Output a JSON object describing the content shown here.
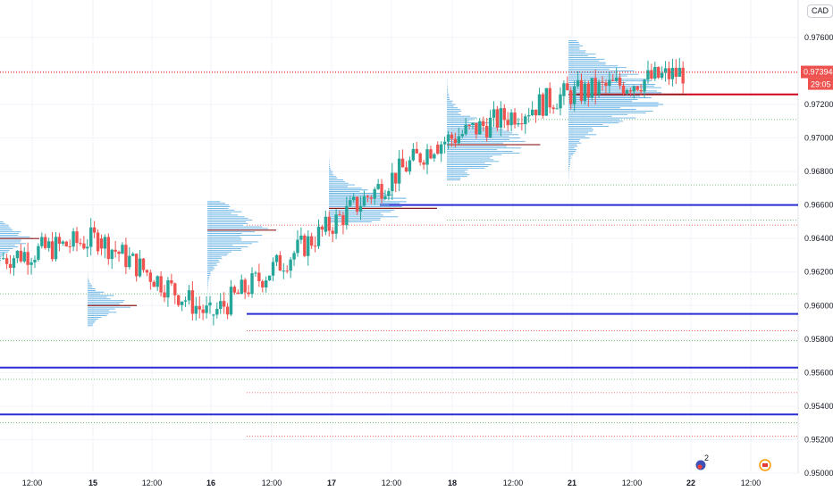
{
  "currency_badge": "CAD",
  "price_tag": {
    "value": "0.97394",
    "countdown": "29:05"
  },
  "colors": {
    "up": "#26a69a",
    "down": "#ef5350",
    "profile": "#4aa3df",
    "level_blue": "#2a2ed2",
    "level_red": "#d0021b",
    "dotted_red": "#ef5350",
    "dotted_green": "#4caf50"
  },
  "event_icons": [
    {
      "name": "au-event-icon",
      "count": "2"
    },
    {
      "name": "ca-event-icon"
    }
  ],
  "chart_data": {
    "type": "candlestick",
    "ylim": [
      0.95,
      0.9777
    ],
    "y_ticks": [
      "0.97600",
      "0.97400",
      "0.97200",
      "0.97000",
      "0.96800",
      "0.96600",
      "0.96400",
      "0.96200",
      "0.96000",
      "0.95800",
      "0.95600",
      "0.95400",
      "0.95200",
      "0.95000"
    ],
    "x_ticks": [
      "12:00",
      "15",
      "12:00",
      "16",
      "12:00",
      "17",
      "12:00",
      "18",
      "12:00",
      "21",
      "12:00",
      "22",
      "12:00"
    ],
    "day_separators": [
      "15",
      "16",
      "17",
      "18",
      "21",
      "22"
    ],
    "candle_series": [
      {
        "segment": "day-14-12h",
        "from_bar": 0,
        "to_bar": 28,
        "start": 0.9628,
        "end": 0.964
      },
      {
        "segment": "day-15",
        "from_bar": 28,
        "to_bar": 60,
        "start": 0.964,
        "end": 0.9594
      },
      {
        "segment": "day-16",
        "from_bar": 60,
        "to_bar": 92,
        "start": 0.9594,
        "end": 0.9644
      },
      {
        "segment": "day-17",
        "from_bar": 92,
        "to_bar": 124,
        "start": 0.9644,
        "end": 0.9696
      },
      {
        "segment": "day-18",
        "from_bar": 124,
        "to_bar": 160,
        "start": 0.9696,
        "end": 0.9725
      },
      {
        "segment": "day-21",
        "from_bar": 160,
        "to_bar": 195,
        "start": 0.9725,
        "end": 0.9739
      }
    ],
    "volume_profiles": [
      {
        "day": "14",
        "poc": 0.964
      },
      {
        "day": "15",
        "poc": 0.96
      },
      {
        "day": "16",
        "poc": 0.9645
      },
      {
        "day": "17",
        "poc": 0.9658
      },
      {
        "day": "18",
        "poc": 0.9696
      },
      {
        "day": "21",
        "poc": 0.9726
      }
    ],
    "horizontal_levels": {
      "solid_blue": [
        0.966,
        0.9595,
        0.9563,
        0.9535
      ],
      "solid_red": [
        0.9726
      ],
      "dotted_red": [
        0.9739,
        0.9648,
        0.9585,
        0.9548,
        0.9522
      ],
      "dotted_green": [
        0.9711,
        0.9672,
        0.9651,
        0.9607,
        0.9579,
        0.9556,
        0.953
      ]
    },
    "last_price": 0.97394
  }
}
